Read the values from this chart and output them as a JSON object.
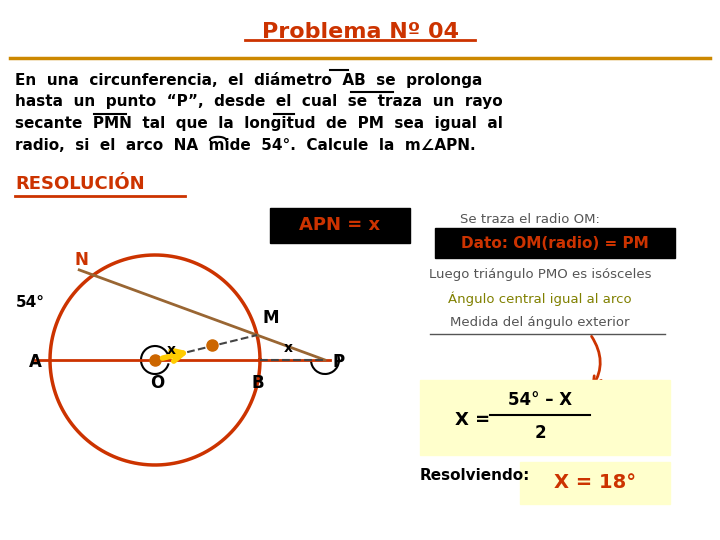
{
  "title": "Problema Nº 04",
  "title_color": "#CC3300",
  "bg_color": "#FFFFFF",
  "separator_color": "#CC8800",
  "apn_box_text": "APN = x",
  "note1": "Se traza el radio OM:",
  "note2_box": "Dato: OM(radio) = PM",
  "note3": "Luego triángulo PMO es isósceles",
  "note4": "Ángulo central igual al arco",
  "note5": "Medida del ángulo exterior",
  "result_text": "Resolviendo:",
  "result_answer": "X = 18°",
  "angle_54": "54°",
  "label_A": "A",
  "label_B": "B",
  "label_O": "O",
  "label_M": "M",
  "label_N": "N",
  "label_P": "P",
  "circle_color": "#CC3300",
  "dashed_color": "#333333",
  "yellow_color": "#FFCC00",
  "text_color": "#000000",
  "olive_color": "#808000",
  "resolucion_label": "RESOLUCIÓN"
}
